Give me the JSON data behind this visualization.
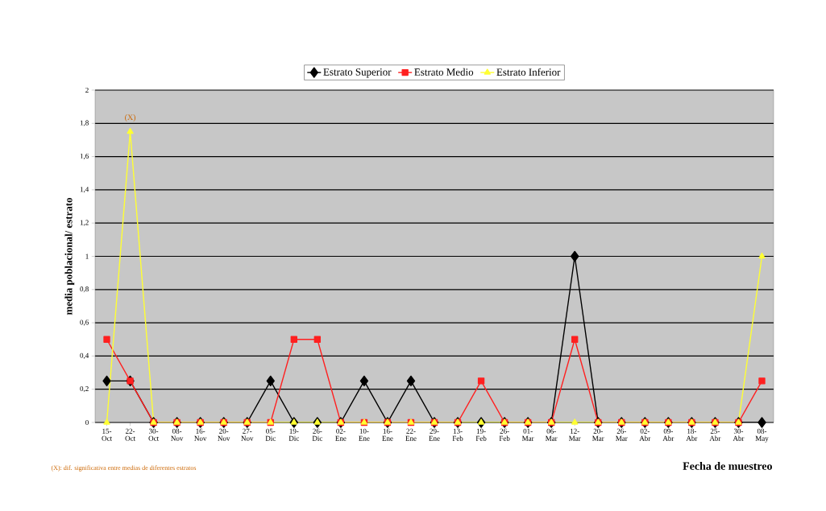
{
  "chart_data": {
    "type": "line",
    "xlabel": "Fecha de muestreo",
    "ylabel": "media poblacional/ estrato",
    "categories": [
      "15-Oct",
      "22-Oct",
      "30-Oct",
      "08-Nov",
      "16-Nov",
      "20-Nov",
      "27-Nov",
      "05-Dic",
      "19-Dic",
      "26-Dic",
      "02-Ene",
      "10-Ene",
      "16-Ene",
      "22-Ene",
      "29-Ene",
      "13-Feb",
      "19-Feb",
      "26-Feb",
      "01-Mar",
      "06-Mar",
      "12-Mar",
      "20-Mar",
      "26-Mar",
      "02-Abr",
      "09-Abr",
      "18-Abr",
      "25-Abr",
      "30-Abr",
      "08-May"
    ],
    "series": [
      {
        "name": "Estrato Superior",
        "color": "#000000",
        "marker": "diamond",
        "values": [
          0.25,
          0.25,
          0,
          0,
          0,
          0,
          0,
          0.25,
          0,
          0,
          0,
          0.25,
          0,
          0.25,
          0,
          0,
          0,
          0,
          0,
          0,
          1,
          0,
          0,
          0,
          0,
          0,
          0,
          0,
          0
        ]
      },
      {
        "name": "Estrato Medio",
        "color": "#ff2020",
        "marker": "square",
        "values": [
          0.5,
          0.25,
          0,
          0,
          0,
          0,
          0,
          0,
          0.5,
          0.5,
          0,
          0,
          0,
          0,
          0,
          0,
          0.25,
          0,
          0,
          0,
          0.5,
          0,
          0,
          0,
          0,
          0,
          0,
          0,
          0.25
        ]
      },
      {
        "name": "Estrato Inferior",
        "color": "#ffff33",
        "marker": "triangle",
        "values": [
          0,
          1.75,
          0,
          0,
          0,
          0,
          0,
          0,
          0,
          0,
          0,
          0,
          0,
          0,
          0,
          0,
          0,
          0,
          0,
          0,
          0,
          0,
          0,
          0,
          0,
          0,
          0,
          0,
          1
        ]
      }
    ],
    "ylim": [
      0,
      2
    ],
    "yticks": [
      0,
      {
        "value": 0.2,
        "label": "0,2"
      },
      {
        "value": 0.4,
        "label": "0,4"
      },
      {
        "value": 0.6,
        "label": "0,6"
      },
      {
        "value": 0.8,
        "label": "0,8"
      },
      1,
      {
        "value": 1.2,
        "label": "1,2"
      },
      {
        "value": 1.4,
        "label": "1,4"
      },
      {
        "value": 1.6,
        "label": "1,6"
      },
      {
        "value": 1.8,
        "label": "1,8"
      },
      2
    ],
    "grid": "y",
    "legend": "top",
    "annotations": [
      {
        "text": "(X)",
        "x": "22-Oct",
        "y": 1.75
      },
      "(X): dif. significativa entre medias de diferentes estratos"
    ]
  }
}
